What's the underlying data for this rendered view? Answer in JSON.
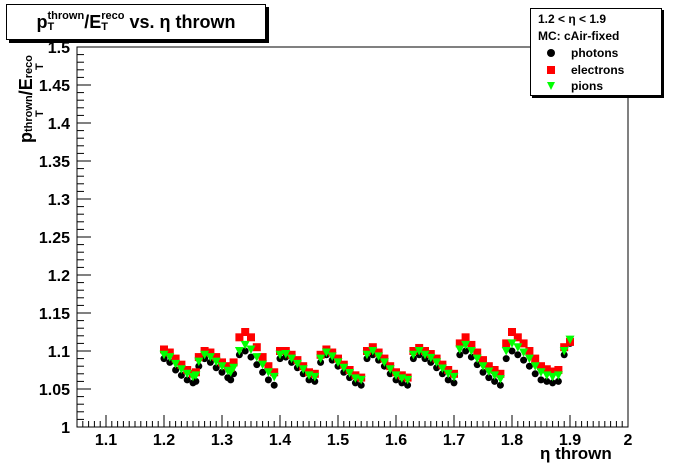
{
  "title": {
    "numerator": "p",
    "num_sub": "T",
    "num_sup": "thrown",
    "slash": "/",
    "denominator": "E",
    "den_sub": "T",
    "den_sup": "reco",
    "suffix": " vs. η thrown"
  },
  "legend": {
    "line1": "1.2 < η < 1.9",
    "line2": "MC: cAir-fixed",
    "entries": [
      "photons",
      "electrons",
      "pions"
    ]
  },
  "colors": {
    "photons": "#000000",
    "electrons": "#ff0000",
    "pions": "#00ff00",
    "axes": "#000000"
  },
  "chart_data": {
    "type": "scatter",
    "title": "pT^thrown/ET^reco vs. η thrown",
    "xlabel": "η thrown",
    "ylabel": "pT^thrown/ET^reco",
    "xlim": [
      1.05,
      2.0
    ],
    "ylim": [
      1.0,
      1.5
    ],
    "xticks": [
      "1.1",
      "1.2",
      "1.3",
      "1.4",
      "1.5",
      "1.6",
      "1.7",
      "1.8",
      "1.9",
      "2"
    ],
    "yticks": [
      "1",
      "1.05",
      "1.1",
      "1.15",
      "1.2",
      "1.25",
      "1.3",
      "1.35",
      "1.4",
      "1.45",
      "1.5"
    ],
    "series": [
      {
        "name": "photons",
        "marker": "circle",
        "x": [
          1.2,
          1.21,
          1.22,
          1.23,
          1.24,
          1.25,
          1.255,
          1.26,
          1.27,
          1.28,
          1.29,
          1.3,
          1.31,
          1.315,
          1.32,
          1.33,
          1.34,
          1.35,
          1.36,
          1.37,
          1.38,
          1.39,
          1.4,
          1.41,
          1.42,
          1.43,
          1.44,
          1.45,
          1.46,
          1.47,
          1.48,
          1.49,
          1.5,
          1.51,
          1.52,
          1.53,
          1.54,
          1.55,
          1.56,
          1.57,
          1.58,
          1.59,
          1.6,
          1.61,
          1.62,
          1.63,
          1.64,
          1.65,
          1.66,
          1.67,
          1.68,
          1.69,
          1.7,
          1.71,
          1.72,
          1.73,
          1.74,
          1.75,
          1.76,
          1.77,
          1.78,
          1.79,
          1.8,
          1.81,
          1.82,
          1.83,
          1.84,
          1.85,
          1.86,
          1.87,
          1.88,
          1.89,
          1.9
        ],
        "y": [
          1.09,
          1.085,
          1.075,
          1.068,
          1.062,
          1.058,
          1.06,
          1.08,
          1.09,
          1.085,
          1.078,
          1.072,
          1.065,
          1.062,
          1.07,
          1.095,
          1.1,
          1.092,
          1.082,
          1.072,
          1.062,
          1.055,
          1.09,
          1.092,
          1.085,
          1.078,
          1.07,
          1.062,
          1.06,
          1.085,
          1.095,
          1.088,
          1.08,
          1.072,
          1.065,
          1.058,
          1.055,
          1.09,
          1.095,
          1.088,
          1.08,
          1.07,
          1.062,
          1.058,
          1.055,
          1.09,
          1.095,
          1.09,
          1.085,
          1.078,
          1.07,
          1.062,
          1.058,
          1.095,
          1.1,
          1.092,
          1.082,
          1.072,
          1.065,
          1.06,
          1.055,
          1.09,
          1.1,
          1.095,
          1.088,
          1.08,
          1.07,
          1.062,
          1.06,
          1.058,
          1.06,
          1.095,
          1.11
        ]
      },
      {
        "name": "electrons",
        "marker": "square",
        "x": [
          1.2,
          1.21,
          1.22,
          1.23,
          1.24,
          1.25,
          1.255,
          1.26,
          1.27,
          1.28,
          1.29,
          1.3,
          1.31,
          1.315,
          1.32,
          1.33,
          1.34,
          1.35,
          1.36,
          1.37,
          1.38,
          1.39,
          1.4,
          1.41,
          1.42,
          1.43,
          1.44,
          1.45,
          1.46,
          1.47,
          1.48,
          1.49,
          1.5,
          1.51,
          1.52,
          1.53,
          1.54,
          1.55,
          1.56,
          1.57,
          1.58,
          1.59,
          1.6,
          1.61,
          1.62,
          1.63,
          1.64,
          1.65,
          1.66,
          1.67,
          1.68,
          1.69,
          1.7,
          1.71,
          1.72,
          1.73,
          1.74,
          1.75,
          1.76,
          1.77,
          1.78,
          1.79,
          1.8,
          1.81,
          1.82,
          1.83,
          1.84,
          1.85,
          1.86,
          1.87,
          1.88,
          1.89,
          1.9
        ],
        "y": [
          1.102,
          1.098,
          1.09,
          1.082,
          1.075,
          1.07,
          1.072,
          1.092,
          1.1,
          1.098,
          1.092,
          1.085,
          1.08,
          1.078,
          1.085,
          1.118,
          1.125,
          1.118,
          1.105,
          1.092,
          1.08,
          1.072,
          1.1,
          1.1,
          1.095,
          1.088,
          1.08,
          1.072,
          1.07,
          1.095,
          1.102,
          1.098,
          1.09,
          1.082,
          1.075,
          1.068,
          1.065,
          1.1,
          1.105,
          1.098,
          1.09,
          1.08,
          1.072,
          1.068,
          1.065,
          1.1,
          1.104,
          1.1,
          1.096,
          1.09,
          1.082,
          1.075,
          1.07,
          1.11,
          1.118,
          1.108,
          1.098,
          1.088,
          1.08,
          1.075,
          1.07,
          1.11,
          1.125,
          1.118,
          1.11,
          1.1,
          1.09,
          1.08,
          1.076,
          1.073,
          1.075,
          1.105,
          1.112
        ]
      },
      {
        "name": "pions",
        "marker": "triangle-down",
        "x": [
          1.2,
          1.21,
          1.22,
          1.23,
          1.24,
          1.25,
          1.255,
          1.26,
          1.27,
          1.28,
          1.29,
          1.3,
          1.31,
          1.315,
          1.32,
          1.33,
          1.34,
          1.35,
          1.36,
          1.37,
          1.38,
          1.39,
          1.4,
          1.41,
          1.42,
          1.43,
          1.44,
          1.45,
          1.46,
          1.47,
          1.48,
          1.49,
          1.5,
          1.51,
          1.52,
          1.53,
          1.54,
          1.55,
          1.56,
          1.57,
          1.58,
          1.59,
          1.6,
          1.61,
          1.62,
          1.63,
          1.64,
          1.65,
          1.66,
          1.67,
          1.68,
          1.69,
          1.7,
          1.71,
          1.72,
          1.73,
          1.74,
          1.75,
          1.76,
          1.77,
          1.78,
          1.79,
          1.8,
          1.81,
          1.82,
          1.83,
          1.84,
          1.85,
          1.86,
          1.87,
          1.88,
          1.89,
          1.9
        ],
        "y": [
          1.095,
          1.092,
          1.083,
          1.076,
          1.07,
          1.066,
          1.068,
          1.086,
          1.095,
          1.092,
          1.086,
          1.08,
          1.074,
          1.072,
          1.078,
          1.1,
          1.108,
          1.102,
          1.092,
          1.082,
          1.072,
          1.066,
          1.095,
          1.096,
          1.09,
          1.083,
          1.076,
          1.068,
          1.066,
          1.09,
          1.098,
          1.093,
          1.085,
          1.078,
          1.071,
          1.064,
          1.062,
          1.095,
          1.1,
          1.093,
          1.085,
          1.076,
          1.068,
          1.064,
          1.062,
          1.095,
          1.1,
          1.095,
          1.091,
          1.085,
          1.077,
          1.07,
          1.066,
          1.102,
          1.108,
          1.1,
          1.09,
          1.08,
          1.073,
          1.068,
          1.063,
          1.1,
          1.11,
          1.105,
          1.098,
          1.09,
          1.08,
          1.072,
          1.068,
          1.066,
          1.068,
          1.1,
          1.115
        ]
      }
    ]
  }
}
